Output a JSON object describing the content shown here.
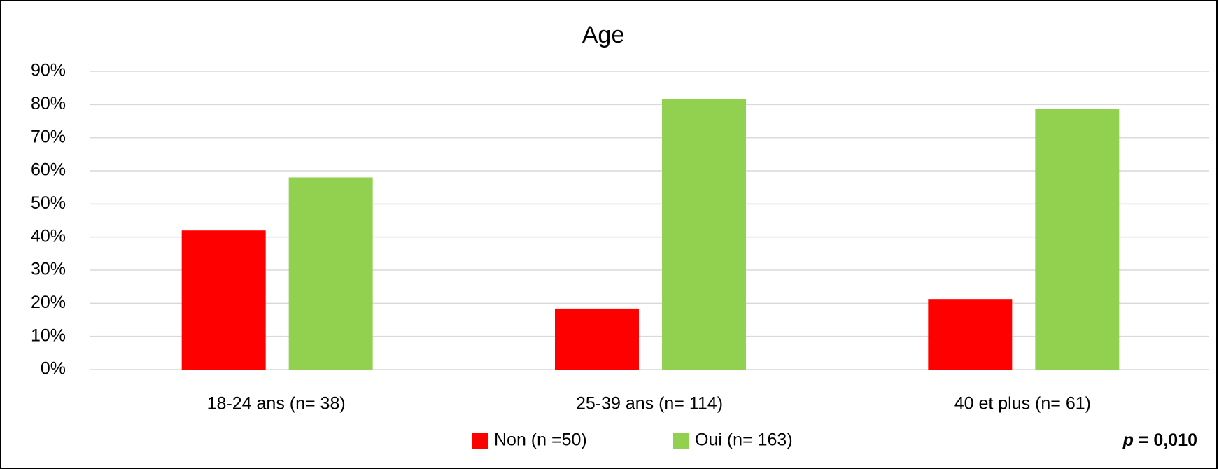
{
  "chart_data": {
    "type": "bar",
    "title": "Age",
    "categories": [
      "18-24 ans (n= 38)",
      "25-39 ans (n= 114)",
      "40 et plus (n= 61)"
    ],
    "series": [
      {
        "name": "Non (n =50)",
        "color": "#ff0000",
        "values": [
          42,
          18.4,
          21.3
        ]
      },
      {
        "name": "Oui (n= 163)",
        "color": "#92d050",
        "values": [
          58,
          81.6,
          78.7
        ]
      }
    ],
    "ylim": [
      0,
      90
    ],
    "yticks": [
      {
        "value": 0,
        "label": "0%"
      },
      {
        "value": 10,
        "label": "10%"
      },
      {
        "value": 20,
        "label": "20%"
      },
      {
        "value": 30,
        "label": "30%"
      },
      {
        "value": 40,
        "label": "40%"
      },
      {
        "value": 50,
        "label": "50%"
      },
      {
        "value": 60,
        "label": "60%"
      },
      {
        "value": 70,
        "label": "70%"
      },
      {
        "value": 80,
        "label": "80%"
      },
      {
        "value": 90,
        "label": "90%"
      }
    ],
    "grid": true,
    "legend": "bottom",
    "annotation": [
      "p",
      "= 0,010"
    ]
  }
}
